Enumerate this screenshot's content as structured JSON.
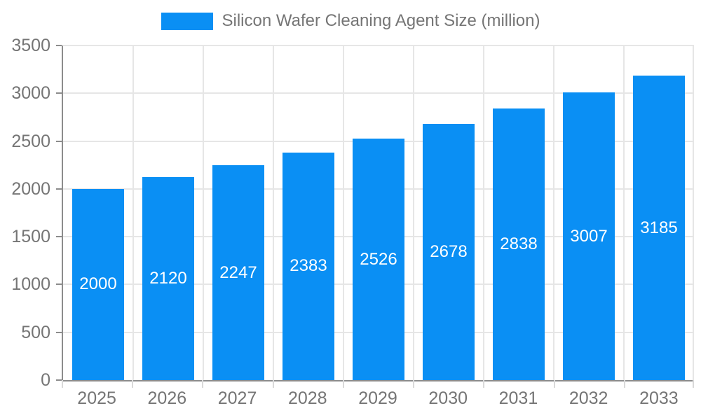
{
  "chart_data": {
    "type": "bar",
    "title": "Silicon Wafer Cleaning Agent Size (million)",
    "legend_entries": [
      "Silicon Wafer Cleaning Agent Size (million)"
    ],
    "legend_position": "top-center",
    "categories": [
      "2025",
      "2026",
      "2027",
      "2028",
      "2029",
      "2030",
      "2031",
      "2032",
      "2033"
    ],
    "values": [
      2000,
      2120,
      2247,
      2383,
      2526,
      2678,
      2838,
      3007,
      3185
    ],
    "xlabel": "",
    "ylabel": "",
    "ylim": [
      0,
      3500
    ],
    "yticks": [
      0,
      500,
      1000,
      1500,
      2000,
      2500,
      3000,
      3500
    ],
    "grid": true,
    "value_label_position": "inside-center",
    "colors": {
      "bar": "#0a8ff4",
      "value_label": "#ffffff",
      "axis_text": "#757575",
      "axis_line": "#8c8c8c",
      "gridline": "#e6e6e6",
      "x_tick_mark": "#d9d9d9"
    }
  }
}
